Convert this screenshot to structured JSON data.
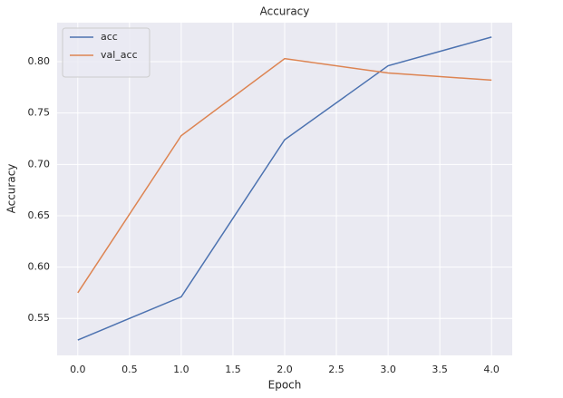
{
  "chart_data": {
    "type": "line",
    "title": "Accuracy",
    "x_label": "Epoch",
    "y_label": "Accuracy",
    "x": [
      0,
      1,
      2,
      3,
      4
    ],
    "series": [
      {
        "name": "acc",
        "color": "#4c72b0",
        "values": [
          0.529,
          0.571,
          0.724,
          0.796,
          0.824
        ]
      },
      {
        "name": "val_acc",
        "color": "#dd8452",
        "values": [
          0.575,
          0.728,
          0.803,
          0.789,
          0.782
        ]
      }
    ],
    "xlim": [
      -0.2,
      4.2
    ],
    "xticks": [
      {
        "value": 0,
        "label": "0.0"
      },
      0.5,
      {
        "value": 1,
        "label": "1.0"
      },
      1.5,
      {
        "value": 2,
        "label": "2.0"
      },
      2.5,
      {
        "value": 3,
        "label": "3.0"
      },
      3.5,
      {
        "value": 4,
        "label": "4.0"
      }
    ],
    "ylim": [
      0.514,
      0.838
    ],
    "yticks": [
      0.55,
      {
        "value": 0.6,
        "label": "0.60"
      },
      0.65,
      {
        "value": 0.7,
        "label": "0.70"
      },
      0.75,
      {
        "value": 0.8,
        "label": "0.80"
      }
    ],
    "grid": true,
    "legend": "upper left"
  }
}
